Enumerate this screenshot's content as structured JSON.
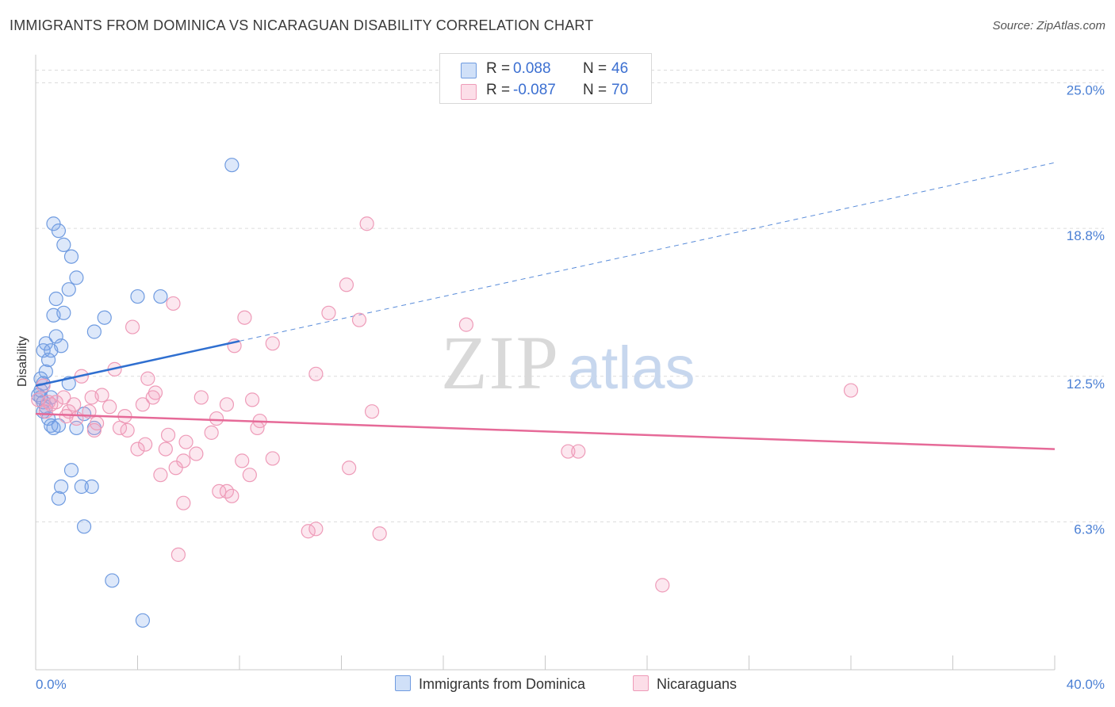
{
  "title": "IMMIGRANTS FROM DOMINICA VS NICARAGUAN DISABILITY CORRELATION CHART",
  "source": "Source: ZipAtlas.com",
  "watermark": {
    "zip": "ZIP",
    "atlas": "atlas"
  },
  "legend": {
    "rows": [
      {
        "r_label": "R =",
        "r_value": "0.088",
        "n_label": "N =",
        "n_value": "46"
      },
      {
        "r_label": "R =",
        "r_value": "-0.087",
        "n_label": "N =",
        "n_value": "70"
      }
    ]
  },
  "bottom_legend": {
    "series1": "Immigrants from Dominica",
    "series2": "Nicaraguans"
  },
  "colors": {
    "series1_fill": "rgba(120,165,235,0.25)",
    "series1_stroke": "#6f9be0",
    "series1_line": "#2f6fd0",
    "series2_fill": "rgba(245,160,190,0.25)",
    "series2_stroke": "#ee9bb8",
    "series2_line": "#e66a98",
    "axis_text": "#4a7fd4"
  },
  "chart_data": {
    "type": "scatter",
    "title": "IMMIGRANTS FROM DOMINICA VS NICARAGUAN DISABILITY CORRELATION CHART",
    "xlabel": "",
    "ylabel": "Disability",
    "xlim": [
      0,
      40
    ],
    "ylim": [
      0,
      26.2
    ],
    "x_tick_labels": [
      "0.0%",
      "40.0%"
    ],
    "y_ticks": [
      6.3,
      12.5,
      18.8,
      25.0
    ],
    "y_tick_labels": [
      "6.3%",
      "12.5%",
      "18.8%",
      "25.0%"
    ],
    "grid": true,
    "legend_position": "top-center",
    "series": [
      {
        "name": "Immigrants from Dominica",
        "r": 0.088,
        "n": 46,
        "trend": {
          "x0": 0,
          "y0": 12.1,
          "x1": 8.0,
          "y1": 14.0,
          "dashed_to_x": 40,
          "dashed_to_y": 21.6
        },
        "points": [
          [
            7.7,
            21.5
          ],
          [
            0.7,
            19.0
          ],
          [
            0.9,
            18.7
          ],
          [
            1.1,
            18.1
          ],
          [
            1.4,
            17.6
          ],
          [
            1.6,
            16.7
          ],
          [
            1.3,
            16.2
          ],
          [
            0.8,
            15.8
          ],
          [
            4.0,
            15.9
          ],
          [
            4.9,
            15.9
          ],
          [
            0.7,
            15.1
          ],
          [
            1.1,
            15.2
          ],
          [
            2.7,
            15.0
          ],
          [
            2.3,
            14.4
          ],
          [
            0.8,
            14.2
          ],
          [
            0.4,
            13.9
          ],
          [
            1.0,
            13.8
          ],
          [
            0.3,
            13.6
          ],
          [
            0.6,
            13.6
          ],
          [
            0.5,
            13.2
          ],
          [
            0.4,
            12.7
          ],
          [
            0.2,
            12.4
          ],
          [
            0.3,
            12.2
          ],
          [
            1.3,
            12.2
          ],
          [
            0.1,
            11.7
          ],
          [
            0.2,
            11.6
          ],
          [
            0.3,
            11.4
          ],
          [
            0.6,
            11.6
          ],
          [
            0.4,
            11.2
          ],
          [
            0.3,
            11.0
          ],
          [
            1.9,
            10.9
          ],
          [
            0.5,
            10.7
          ],
          [
            0.6,
            10.4
          ],
          [
            0.7,
            10.3
          ],
          [
            0.9,
            10.4
          ],
          [
            1.6,
            10.3
          ],
          [
            2.3,
            10.3
          ],
          [
            1.4,
            8.5
          ],
          [
            1.0,
            7.8
          ],
          [
            1.8,
            7.8
          ],
          [
            2.2,
            7.8
          ],
          [
            0.9,
            7.3
          ],
          [
            1.9,
            6.1
          ],
          [
            3.0,
            3.8
          ],
          [
            4.2,
            2.1
          ],
          [
            0.2,
            11.9
          ]
        ]
      },
      {
        "name": "Nicaraguans",
        "r": -0.087,
        "n": 70,
        "trend": {
          "x0": 0,
          "y0": 10.9,
          "x1": 40,
          "y1": 9.4
        },
        "points": [
          [
            13.0,
            19.0
          ],
          [
            12.2,
            16.4
          ],
          [
            5.4,
            15.6
          ],
          [
            11.5,
            15.2
          ],
          [
            8.2,
            15.0
          ],
          [
            12.7,
            14.9
          ],
          [
            3.8,
            14.6
          ],
          [
            16.9,
            14.7
          ],
          [
            7.8,
            13.8
          ],
          [
            9.3,
            13.9
          ],
          [
            3.1,
            12.8
          ],
          [
            11.0,
            12.6
          ],
          [
            1.8,
            12.5
          ],
          [
            4.4,
            12.4
          ],
          [
            1.1,
            11.6
          ],
          [
            32.0,
            11.9
          ],
          [
            0.3,
            12.1
          ],
          [
            0.5,
            11.4
          ],
          [
            0.8,
            11.4
          ],
          [
            1.5,
            11.3
          ],
          [
            2.6,
            11.7
          ],
          [
            2.2,
            11.6
          ],
          [
            4.7,
            11.8
          ],
          [
            4.6,
            11.6
          ],
          [
            6.5,
            11.6
          ],
          [
            8.5,
            11.5
          ],
          [
            13.2,
            11.0
          ],
          [
            0.4,
            11.0
          ],
          [
            1.3,
            11.0
          ],
          [
            1.6,
            10.7
          ],
          [
            2.1,
            11.0
          ],
          [
            2.9,
            11.2
          ],
          [
            4.2,
            11.3
          ],
          [
            3.5,
            10.8
          ],
          [
            7.5,
            11.3
          ],
          [
            7.1,
            10.7
          ],
          [
            8.8,
            10.6
          ],
          [
            2.4,
            10.5
          ],
          [
            2.3,
            10.2
          ],
          [
            3.3,
            10.3
          ],
          [
            3.6,
            10.2
          ],
          [
            6.9,
            10.1
          ],
          [
            8.7,
            10.3
          ],
          [
            5.2,
            10.0
          ],
          [
            5.9,
            9.7
          ],
          [
            4.3,
            9.6
          ],
          [
            4.0,
            9.4
          ],
          [
            5.1,
            9.4
          ],
          [
            6.3,
            9.2
          ],
          [
            20.9,
            9.3
          ],
          [
            21.3,
            9.3
          ],
          [
            5.8,
            8.9
          ],
          [
            8.1,
            8.9
          ],
          [
            9.3,
            9.0
          ],
          [
            5.5,
            8.6
          ],
          [
            12.3,
            8.6
          ],
          [
            4.9,
            8.3
          ],
          [
            8.4,
            8.3
          ],
          [
            7.2,
            7.6
          ],
          [
            7.5,
            7.6
          ],
          [
            7.7,
            7.4
          ],
          [
            5.8,
            7.1
          ],
          [
            10.7,
            5.9
          ],
          [
            11.0,
            6.0
          ],
          [
            13.5,
            5.8
          ],
          [
            5.6,
            4.9
          ],
          [
            24.6,
            3.6
          ],
          [
            0.1,
            11.5
          ],
          [
            0.6,
            11.3
          ],
          [
            1.2,
            10.8
          ]
        ]
      }
    ]
  }
}
